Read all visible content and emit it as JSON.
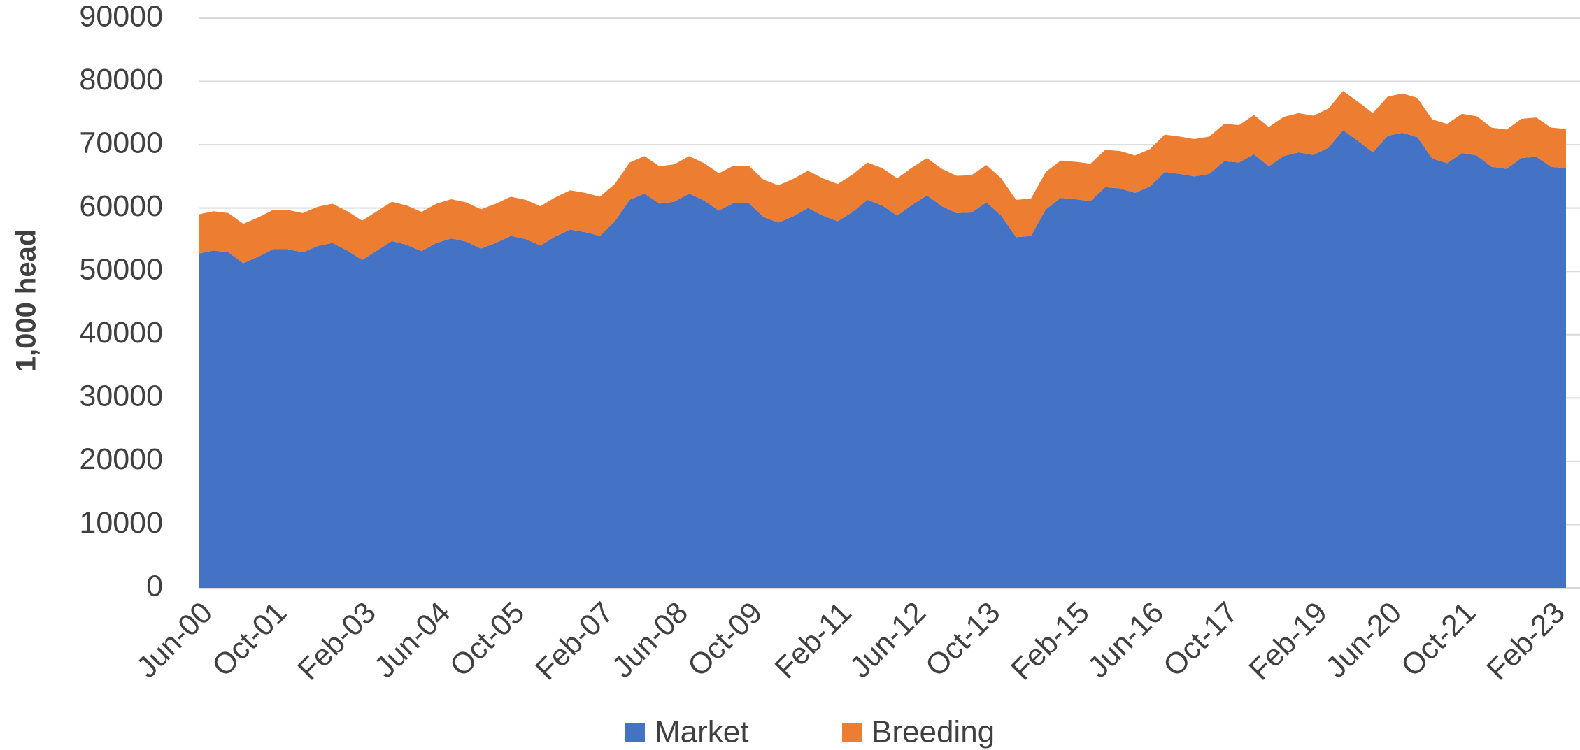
{
  "chart_data": {
    "type": "stacked_area",
    "y_label": "1,000 head",
    "categories": [
      "Jun-00",
      null,
      null,
      null,
      null,
      "Oct-01",
      null,
      null,
      null,
      null,
      null,
      "Feb-03",
      null,
      null,
      null,
      null,
      "Jun-04",
      null,
      null,
      null,
      null,
      "Oct-05",
      null,
      null,
      null,
      null,
      null,
      "Feb-07",
      null,
      null,
      null,
      null,
      "Jun-08",
      null,
      null,
      null,
      null,
      "Oct-09",
      null,
      null,
      null,
      null,
      null,
      "Feb-11",
      null,
      null,
      null,
      null,
      "Jun-12",
      null,
      null,
      null,
      null,
      "Oct-13",
      null,
      null,
      null,
      null,
      null,
      "Feb-15",
      null,
      null,
      null,
      null,
      "Jun-16",
      null,
      null,
      null,
      null,
      "Oct-17",
      null,
      null,
      null,
      null,
      null,
      "Feb-19",
      null,
      null,
      null,
      null,
      "Jun-20",
      null,
      null,
      null,
      null,
      "Oct-21",
      null,
      null,
      null,
      null,
      null,
      "Feb-23",
      null
    ],
    "series": [
      {
        "name": "Market",
        "color": "#4472c4",
        "values": [
          52800,
          53300,
          53000,
          51300,
          52300,
          53500,
          53500,
          53000,
          54000,
          54500,
          53300,
          51800,
          53300,
          54800,
          54200,
          53200,
          54500,
          55200,
          54700,
          53600,
          54500,
          55600,
          55100,
          54100,
          55500,
          56600,
          56200,
          55600,
          57900,
          61300,
          62300,
          60700,
          61000,
          62300,
          61200,
          59600,
          60800,
          60800,
          58600,
          57700,
          58700,
          60000,
          58800,
          57900,
          59400,
          61300,
          60400,
          58800,
          60500,
          62000,
          60300,
          59200,
          59300,
          60900,
          58800,
          55400,
          55600,
          59800,
          61600,
          61400,
          61100,
          63300,
          63100,
          62400,
          63400,
          65700,
          65400,
          65000,
          65400,
          67400,
          67200,
          68500,
          66600,
          68200,
          68800,
          68400,
          69500,
          72300,
          70600,
          68800,
          71400,
          71900,
          71200,
          67800,
          67100,
          68700,
          68300,
          66500,
          66200,
          67900,
          68100,
          66500,
          66300
        ]
      },
      {
        "name": "Breeding",
        "color": "#ed7d31",
        "values": [
          6200,
          6200,
          6200,
          6200,
          6200,
          6200,
          6200,
          6200,
          6200,
          6200,
          6200,
          6200,
          6200,
          6200,
          6200,
          6200,
          6200,
          6200,
          6200,
          6200,
          6200,
          6200,
          6200,
          6200,
          6200,
          6200,
          6200,
          6200,
          5900,
          5900,
          5900,
          5900,
          5900,
          5900,
          5900,
          5900,
          5900,
          5900,
          5900,
          5900,
          5900,
          5900,
          5900,
          5900,
          5900,
          5900,
          5900,
          5900,
          5900,
          5900,
          5900,
          5900,
          5900,
          5900,
          5900,
          5900,
          5900,
          5900,
          5900,
          5900,
          5900,
          5900,
          5900,
          5900,
          5900,
          5900,
          5900,
          5900,
          5900,
          5900,
          5900,
          6200,
          6200,
          6200,
          6200,
          6200,
          6200,
          6200,
          6200,
          6200,
          6200,
          6200,
          6200,
          6200,
          6200,
          6200,
          6200,
          6200,
          6200,
          6200,
          6200,
          6200,
          6200
        ]
      }
    ],
    "ylim": [
      0,
      90000
    ],
    "yticks": [
      0,
      10000,
      20000,
      30000,
      40000,
      50000,
      60000,
      70000,
      80000,
      90000
    ],
    "grid": true,
    "legend": "bottom"
  }
}
